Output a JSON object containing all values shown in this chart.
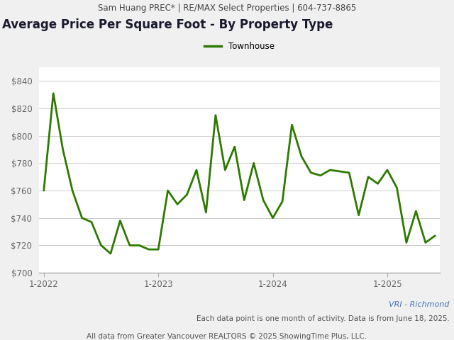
{
  "header_text": "Sam Huang PREC* | RE/MAX Select Properties | 604-737-8865",
  "title": "Average Price Per Square Foot - By Property Type",
  "legend_label": "Townhouse",
  "line_color": "#2d7a00",
  "ylim": [
    700,
    850
  ],
  "yticks": [
    700,
    720,
    740,
    760,
    780,
    800,
    820,
    840
  ],
  "footer1": "VRI - Richmond",
  "footer2": "Each data point is one month of activity. Data is from June 18, 2025.",
  "footer3": "All data from Greater Vancouver REALTORS © 2025 ShowingTime Plus, LLC.",
  "x_tick_labels": [
    "1-2022",
    "1-2023",
    "1-2024",
    "1-2025"
  ],
  "xtick_positions": [
    0,
    12,
    24,
    36
  ],
  "values": [
    760,
    831,
    790,
    760,
    740,
    737,
    720,
    714,
    738,
    720,
    720,
    717,
    717,
    760,
    750,
    757,
    775,
    744,
    815,
    775,
    792,
    753,
    780,
    753,
    740,
    752,
    808,
    785,
    773,
    771,
    775,
    774,
    773,
    742,
    770,
    765,
    775,
    762,
    722,
    745,
    722,
    727
  ],
  "background_color": "#f0f0f0",
  "plot_bg_color": "#ffffff",
  "grid_color": "#cccccc",
  "header_bg_color": "#e0e0e0",
  "title_color": "#1a1a2e",
  "tick_label_color": "#666666",
  "footer_color": "#555555",
  "footer1_color": "#4472c4",
  "header_font_size": 8.5,
  "title_font_size": 12,
  "legend_font_size": 8.5,
  "tick_font_size": 8.5,
  "footer_font_size": 7.5
}
